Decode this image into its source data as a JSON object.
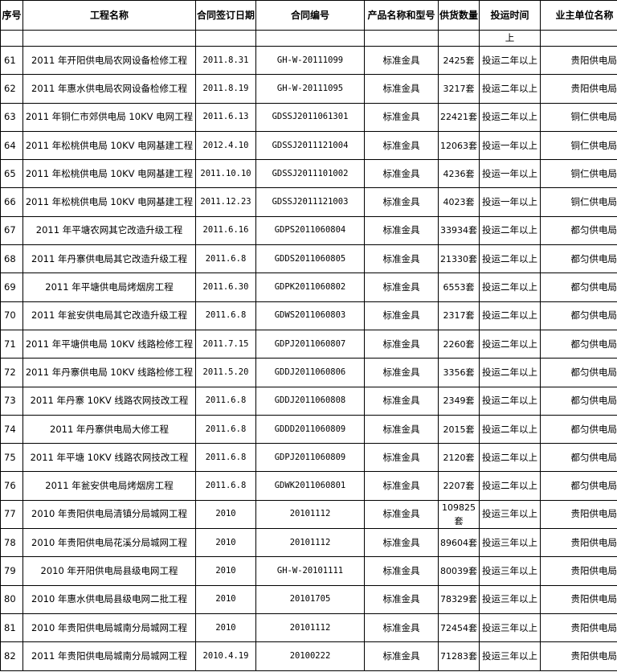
{
  "headers": [
    "序号",
    "工程名称",
    "合同签订日期",
    "合同编号",
    "产品名称和型号",
    "供货数量",
    "投运时间",
    "业主单位名称"
  ],
  "partial_row": {
    "operation": "上"
  },
  "rows": [
    {
      "no": "61",
      "project": "2011 年开阳供电局农网设备检修工程",
      "date": "2011.8.31",
      "contract": "GH-W-20111099",
      "product": "标准金具",
      "qty": "2425套",
      "operation": "投运二年以上",
      "owner": "贵阳供电局"
    },
    {
      "no": "62",
      "project": "2011 年惠水供电局农网设备检修工程",
      "date": "2011.8.19",
      "contract": "GH-W-20111095",
      "product": "标准金具",
      "qty": "3217套",
      "operation": "投运二年以上",
      "owner": "贵阳供电局"
    },
    {
      "no": "63",
      "project": "2011 年铜仁市郊供电局 10KV 电网工程",
      "date": "2011.6.13",
      "contract": "GDSSJ2011061301",
      "product": "标准金具",
      "qty": "22421套",
      "operation": "投运二年以上",
      "owner": "铜仁供电局"
    },
    {
      "no": "64",
      "project": "2011 年松桃供电局 10KV 电网基建工程",
      "date": "2012.4.10",
      "contract": "GDSSJ2011121004",
      "product": "标准金具",
      "qty": "12063套",
      "operation": "投运一年以上",
      "owner": "铜仁供电局"
    },
    {
      "no": "65",
      "project": "2011 年松桃供电局 10KV 电网基建工程",
      "date": "2011.10.10",
      "contract": "GDSSJ2011101002",
      "product": "标准金具",
      "qty": "4236套",
      "operation": "投运一年以上",
      "owner": "铜仁供电局"
    },
    {
      "no": "66",
      "project": "2011 年松桃供电局 10KV 电网基建工程",
      "date": "2011.12.23",
      "contract": "GDSSJ2011121003",
      "product": "标准金具",
      "qty": "4023套",
      "operation": "投运一年以上",
      "owner": "铜仁供电局"
    },
    {
      "no": "67",
      "project": "2011 年平塘农网其它改造升级工程",
      "date": "2011.6.16",
      "contract": "GDPS2011060804",
      "product": "标准金具",
      "qty": "33934套",
      "operation": "投运二年以上",
      "owner": "都匀供电局"
    },
    {
      "no": "68",
      "project": "2011 年丹寨供电局其它改造升级工程",
      "date": "2011.6.8",
      "contract": "GDDS2011060805",
      "product": "标准金具",
      "qty": "21330套",
      "operation": "投运二年以上",
      "owner": "都匀供电局"
    },
    {
      "no": "69",
      "project": "2011 年平塘供电局烤烟房工程",
      "date": "2011.6.30",
      "contract": "GDPK2011060802",
      "product": "标准金具",
      "qty": "6553套",
      "operation": "投运二年以上",
      "owner": "都匀供电局"
    },
    {
      "no": "70",
      "project": "2011 年瓮安供电局其它改造升级工程",
      "date": "2011.6.8",
      "contract": "GDWS2011060803",
      "product": "标准金具",
      "qty": "2317套",
      "operation": "投运二年以上",
      "owner": "都匀供电局"
    },
    {
      "no": "71",
      "project": "2011 年平塘供电局 10KV 线路检修工程",
      "date": "2011.7.15",
      "contract": "GDPJ2011060807",
      "product": "标准金具",
      "qty": "2260套",
      "operation": "投运二年以上",
      "owner": "都匀供电局"
    },
    {
      "no": "72",
      "project": "2011 年丹寨供电局 10KV 线路检修工程",
      "date": "2011.5.20",
      "contract": "GDDJ2011060806",
      "product": "标准金具",
      "qty": "3356套",
      "operation": "投运二年以上",
      "owner": "都匀供电局"
    },
    {
      "no": "73",
      "project": "2011 年丹寨 10KV 线路农网技改工程",
      "date": "2011.6.8",
      "contract": "GDDJ2011060808",
      "product": "标准金具",
      "qty": "2349套",
      "operation": "投运二年以上",
      "owner": "都匀供电局"
    },
    {
      "no": "74",
      "project": "2011 年丹寨供电局大修工程",
      "date": "2011.6.8",
      "contract": "GDDD2011060809",
      "product": "标准金具",
      "qty": "2015套",
      "operation": "投运二年以上",
      "owner": "都匀供电局"
    },
    {
      "no": "75",
      "project": "2011 年平塘 10KV 线路农网技改工程",
      "date": "2011.6.8",
      "contract": "GDPJ2011060809",
      "product": "标准金具",
      "qty": "2120套",
      "operation": "投运二年以上",
      "owner": "都匀供电局"
    },
    {
      "no": "76",
      "project": "2011 年瓮安供电局烤烟房工程",
      "date": "2011.6.8",
      "contract": "GDWK2011060801",
      "product": "标准金具",
      "qty": "2207套",
      "operation": "投运二年以上",
      "owner": "都匀供电局"
    },
    {
      "no": "77",
      "project": "2010 年贵阳供电局清镇分局城网工程",
      "date": "2010",
      "contract": "20101112",
      "product": "标准金具",
      "qty": "109825套",
      "operation": "投运三年以上",
      "owner": "贵阳供电局"
    },
    {
      "no": "78",
      "project": "2010 年贵阳供电局花溪分局城网工程",
      "date": "2010",
      "contract": "20101112",
      "product": "标准金具",
      "qty": "89604套",
      "operation": "投运三年以上",
      "owner": "贵阳供电局"
    },
    {
      "no": "79",
      "project": "2010 年开阳供电局县级电网工程",
      "date": "2010",
      "contract": "GH-W-20101111",
      "product": "标准金具",
      "qty": "80039套",
      "operation": "投运三年以上",
      "owner": "贵阳供电局"
    },
    {
      "no": "80",
      "project": "2010 年惠水供电局县级电网二批工程",
      "date": "2010",
      "contract": "20101705",
      "product": "标准金具",
      "qty": "78329套",
      "operation": "投运三年以上",
      "owner": "贵阳供电局"
    },
    {
      "no": "81",
      "project": "2010 年贵阳供电局城南分局城网工程",
      "date": "2010",
      "contract": "20101112",
      "product": "标准金具",
      "qty": "72454套",
      "operation": "投运三年以上",
      "owner": "贵阳供电局"
    },
    {
      "no": "82",
      "project": "2011 年贵阳供电局城南分局城网工程",
      "date": "2010.4.19",
      "contract": "20100222",
      "product": "标准金具",
      "qty": "71283套",
      "operation": "投运三年以上",
      "owner": "贵阳供电局"
    }
  ]
}
